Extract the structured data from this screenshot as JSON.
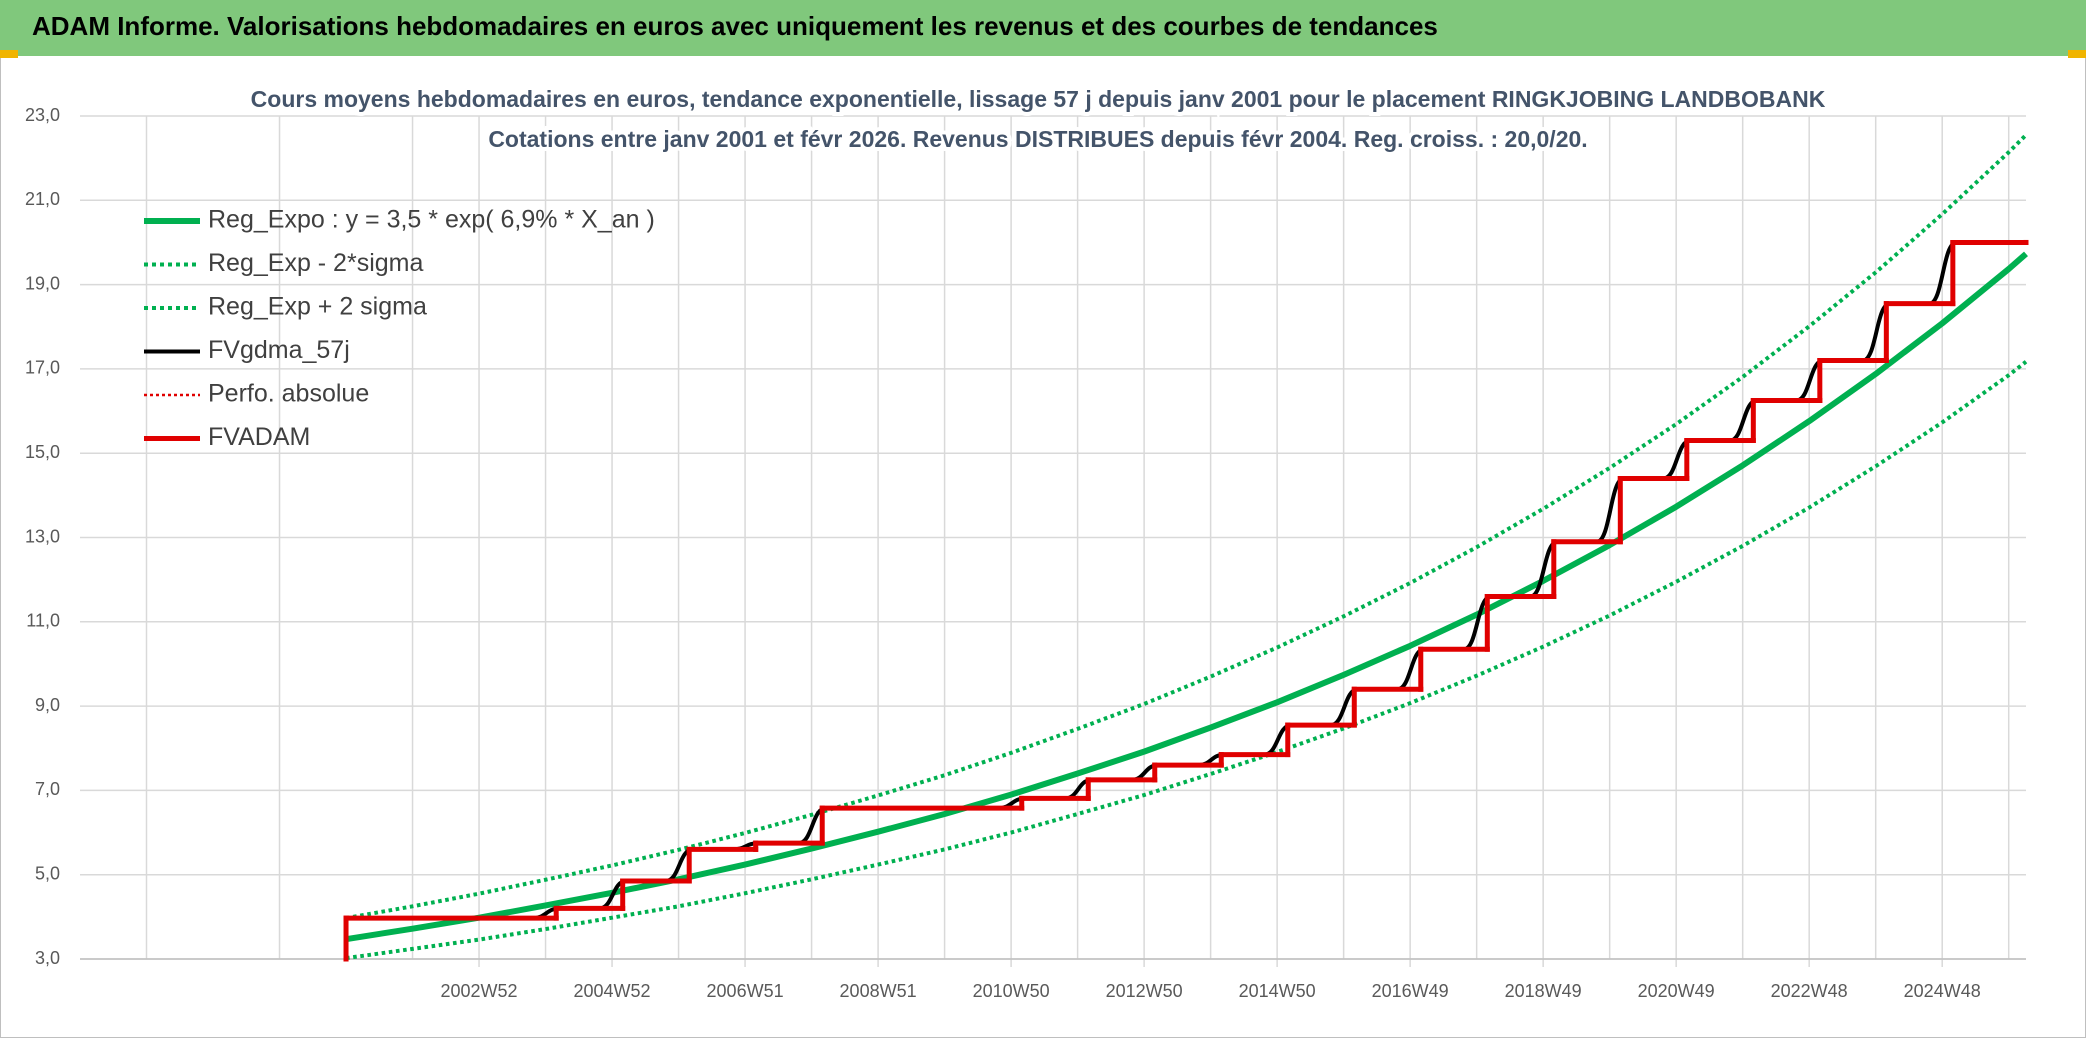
{
  "header": {
    "title": "ADAM Informe. Valorisations hebdomadaires en euros avec uniquement les revenus et des courbes de tendances"
  },
  "chart_data": {
    "type": "line",
    "title": "Cours moyens hebdomadaires en euros, tendance exponentielle, lissage 57 j depuis janv 2001 pour le placement RINGKJOBING LANDBOBANK",
    "subtitle": "Cotations entre janv 2001 et févr 2026. Revenus DISTRIBUES depuis févr 2004. Reg. croiss. : 20,0/20.",
    "xlim": [
      1997,
      2026.26
    ],
    "ylim": [
      3,
      23
    ],
    "yticks": [
      {
        "value": 3,
        "label": "3,0"
      },
      {
        "value": 5,
        "label": "5,0"
      },
      {
        "value": 7,
        "label": "7,0"
      },
      {
        "value": 9,
        "label": "9,0"
      },
      {
        "value": 11,
        "label": "11,0"
      },
      {
        "value": 13,
        "label": "13,0"
      },
      {
        "value": 15,
        "label": "15,0"
      },
      {
        "value": 17,
        "label": "17,0"
      },
      {
        "value": 19,
        "label": "19,0"
      },
      {
        "value": 21,
        "label": "21,0"
      },
      {
        "value": 23,
        "label": "23,0"
      }
    ],
    "xticks": [
      {
        "value": 2003,
        "label": "2002W52"
      },
      {
        "value": 2005,
        "label": "2004W52"
      },
      {
        "value": 2007,
        "label": "2006W51"
      },
      {
        "value": 2009,
        "label": "2008W51"
      },
      {
        "value": 2011,
        "label": "2010W50"
      },
      {
        "value": 2013,
        "label": "2012W50"
      },
      {
        "value": 2015,
        "label": "2014W50"
      },
      {
        "value": 2017,
        "label": "2016W49"
      },
      {
        "value": 2019,
        "label": "2018W49"
      },
      {
        "value": 2021,
        "label": "2020W49"
      },
      {
        "value": 2023,
        "label": "2022W48"
      },
      {
        "value": 2025,
        "label": "2024W48"
      }
    ],
    "xgrid": [
      1998,
      2000,
      2002,
      2004,
      2006,
      2008,
      2010,
      2012,
      2014,
      2016,
      2018,
      2020,
      2022,
      2024,
      2026
    ],
    "grid": true,
    "legend": "upper left",
    "series": [
      {
        "name": "Reg_Expo : y = 3,5 * exp( 6,9% *  X_an )",
        "color": "#00b050",
        "dash": false,
        "interpolation": "linear",
        "x": [
          2001,
          2002,
          2003,
          2004,
          2005,
          2006,
          2007,
          2008,
          2009,
          2010,
          2011,
          2012,
          2013,
          2014,
          2015,
          2016,
          2017,
          2018,
          2019,
          2020,
          2021,
          2022,
          2023,
          2024,
          2025,
          2026,
          2026.26
        ],
        "values": [
          3.47,
          3.72,
          3.98,
          4.27,
          4.57,
          4.89,
          5.24,
          5.62,
          6.02,
          6.44,
          6.9,
          7.4,
          7.92,
          8.49,
          9.09,
          9.74,
          10.43,
          11.17,
          11.97,
          12.82,
          13.73,
          14.71,
          15.76,
          16.88,
          18.08,
          19.37,
          19.73
        ]
      },
      {
        "name": "Reg_Exp - 2*sigma",
        "color": "#00b050",
        "dash": true,
        "interpolation": "linear",
        "x": [
          2001,
          2002,
          2003,
          2004,
          2005,
          2006,
          2007,
          2008,
          2009,
          2010,
          2011,
          2012,
          2013,
          2014,
          2015,
          2016,
          2017,
          2018,
          2019,
          2020,
          2021,
          2022,
          2023,
          2024,
          2025,
          2026,
          2026.26
        ],
        "values": [
          3.02,
          3.24,
          3.46,
          3.71,
          3.98,
          4.25,
          4.56,
          4.89,
          5.24,
          5.6,
          6.0,
          6.44,
          6.89,
          7.39,
          7.91,
          8.47,
          9.07,
          9.72,
          10.41,
          11.15,
          11.95,
          12.8,
          13.71,
          14.69,
          15.73,
          16.85,
          17.17
        ]
      },
      {
        "name": "Reg_Exp + 2 sigma",
        "color": "#00b050",
        "dash": true,
        "interpolation": "linear",
        "x": [
          2001,
          2002,
          2003,
          2004,
          2005,
          2006,
          2007,
          2008,
          2009,
          2010,
          2011,
          2012,
          2013,
          2014,
          2015,
          2016,
          2017,
          2018,
          2019,
          2020,
          2021,
          2022,
          2023,
          2024,
          2025,
          2026,
          2026.26
        ],
        "values": [
          3.97,
          4.25,
          4.55,
          4.88,
          5.22,
          5.59,
          5.99,
          6.42,
          6.88,
          7.36,
          7.89,
          8.46,
          9.05,
          9.7,
          10.39,
          11.13,
          11.92,
          12.77,
          13.68,
          14.65,
          15.69,
          16.81,
          18.01,
          19.29,
          20.67,
          22.14,
          22.55
        ]
      },
      {
        "name": "FVgdma_57j",
        "color": "#000000",
        "dash": false,
        "interpolation": "smooth",
        "x": [
          2001,
          2003.81,
          2004.21,
          2004.81,
          2005.21,
          2005.81,
          2006.21,
          2006.81,
          2007.21,
          2007.81,
          2008.21,
          2010.81,
          2011.21,
          2011.81,
          2012.21,
          2012.81,
          2013.21,
          2013.81,
          2014.21,
          2014.81,
          2015.21,
          2015.81,
          2016.21,
          2016.81,
          2017.21,
          2017.81,
          2018.21,
          2018.81,
          2019.21,
          2019.81,
          2020.21,
          2020.81,
          2021.21,
          2021.81,
          2022.21,
          2022.81,
          2023.21,
          2023.81,
          2024.21,
          2024.81,
          2025.21,
          2026.26
        ],
        "values": [
          3.97,
          3.97,
          4.2,
          4.2,
          4.85,
          4.85,
          5.6,
          5.6,
          5.75,
          5.75,
          6.58,
          6.58,
          6.81,
          6.81,
          7.25,
          7.25,
          7.6,
          7.6,
          7.85,
          7.85,
          8.55,
          8.55,
          9.4,
          9.4,
          10.35,
          10.35,
          11.6,
          11.6,
          12.9,
          12.9,
          14.4,
          14.4,
          15.3,
          15.3,
          16.25,
          16.25,
          17.2,
          17.2,
          18.55,
          18.55,
          20.0,
          20.0
        ]
      },
      {
        "name": "Perfo. absolue",
        "color": "#e00000",
        "dash": true,
        "interpolation": "linear",
        "x": [],
        "values": []
      },
      {
        "name": "FVADAM",
        "color": "#e00000",
        "dash": false,
        "interpolation": "step",
        "x": [
          2001,
          2001,
          2004.16,
          2005.16,
          2006.16,
          2007.16,
          2008.16,
          2011.16,
          2012.16,
          2013.16,
          2014.16,
          2015.16,
          2016.16,
          2017.16,
          2018.16,
          2019.16,
          2020.16,
          2021.16,
          2022.16,
          2023.16,
          2024.16,
          2025.16,
          2026.26
        ],
        "values": [
          3.0,
          3.97,
          4.2,
          4.85,
          5.6,
          5.75,
          6.58,
          6.81,
          7.25,
          7.6,
          7.85,
          8.55,
          9.4,
          10.35,
          11.6,
          12.9,
          14.4,
          15.3,
          16.25,
          17.2,
          18.55,
          20.0,
          20.0
        ]
      }
    ]
  }
}
